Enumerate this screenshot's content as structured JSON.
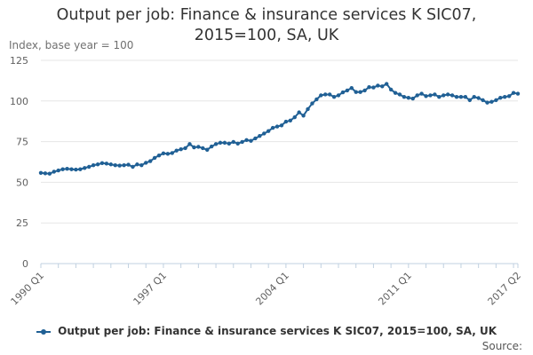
{
  "chart_data": {
    "type": "line",
    "title_lines": [
      "Output per job: Finance & insurance services K SIC07,",
      "2015=100, SA, UK"
    ],
    "ylabel": "Index, base year = 100",
    "xlabel": "",
    "ylim": [
      0,
      125
    ],
    "yticks": [
      0,
      25,
      50,
      75,
      100,
      125
    ],
    "x_range": [
      "1990 Q1",
      "2017 Q2"
    ],
    "xticks": [
      "1990 Q1",
      "1997 Q1",
      "2004 Q1",
      "2011 Q1",
      "2017 Q2"
    ],
    "grid": true,
    "legend_position": "bottom",
    "series": [
      {
        "name": "Output per job: Finance & insurance services K SIC07, 2015=100, SA, UK",
        "color": "#206095",
        "x": [
          "1990 Q1",
          "1990 Q2",
          "1990 Q3",
          "1990 Q4",
          "1991 Q1",
          "1991 Q2",
          "1991 Q3",
          "1991 Q4",
          "1992 Q1",
          "1992 Q2",
          "1992 Q3",
          "1992 Q4",
          "1993 Q1",
          "1993 Q2",
          "1993 Q3",
          "1993 Q4",
          "1994 Q1",
          "1994 Q2",
          "1994 Q3",
          "1994 Q4",
          "1995 Q1",
          "1995 Q2",
          "1995 Q3",
          "1995 Q4",
          "1996 Q1",
          "1996 Q2",
          "1996 Q3",
          "1996 Q4",
          "1997 Q1",
          "1997 Q2",
          "1997 Q3",
          "1997 Q4",
          "1998 Q1",
          "1998 Q2",
          "1998 Q3",
          "1998 Q4",
          "1999 Q1",
          "1999 Q2",
          "1999 Q3",
          "1999 Q4",
          "2000 Q1",
          "2000 Q2",
          "2000 Q3",
          "2000 Q4",
          "2001 Q1",
          "2001 Q2",
          "2001 Q3",
          "2001 Q4",
          "2002 Q1",
          "2002 Q2",
          "2002 Q3",
          "2002 Q4",
          "2003 Q1",
          "2003 Q2",
          "2003 Q3",
          "2003 Q4",
          "2004 Q1",
          "2004 Q2",
          "2004 Q3",
          "2004 Q4",
          "2005 Q1",
          "2005 Q2",
          "2005 Q3",
          "2005 Q4",
          "2006 Q1",
          "2006 Q2",
          "2006 Q3",
          "2006 Q4",
          "2007 Q1",
          "2007 Q2",
          "2007 Q3",
          "2007 Q4",
          "2008 Q1",
          "2008 Q2",
          "2008 Q3",
          "2008 Q4",
          "2009 Q1",
          "2009 Q2",
          "2009 Q3",
          "2009 Q4",
          "2010 Q1",
          "2010 Q2",
          "2010 Q3",
          "2010 Q4",
          "2011 Q1",
          "2011 Q2",
          "2011 Q3",
          "2011 Q4",
          "2012 Q1",
          "2012 Q2",
          "2012 Q3",
          "2012 Q4",
          "2013 Q1",
          "2013 Q2",
          "2013 Q3",
          "2013 Q4",
          "2014 Q1",
          "2014 Q2",
          "2014 Q3",
          "2014 Q4",
          "2015 Q1",
          "2015 Q2",
          "2015 Q3",
          "2015 Q4",
          "2016 Q1",
          "2016 Q2",
          "2016 Q3",
          "2016 Q4",
          "2017 Q1",
          "2017 Q2"
        ],
        "values": [
          55.8,
          55.5,
          55.3,
          56.5,
          57.3,
          58.0,
          58.3,
          58.0,
          57.8,
          58.0,
          58.8,
          59.5,
          60.5,
          61.0,
          61.8,
          61.5,
          61.0,
          60.5,
          60.3,
          60.5,
          60.8,
          59.5,
          61.0,
          60.5,
          62.0,
          63.0,
          65.0,
          66.5,
          67.8,
          67.5,
          68.0,
          69.5,
          70.3,
          71.0,
          73.5,
          71.5,
          71.8,
          71.0,
          70.0,
          72.0,
          73.5,
          74.3,
          74.3,
          73.8,
          74.8,
          73.8,
          74.8,
          76.0,
          75.5,
          77.0,
          78.5,
          80.0,
          81.5,
          83.5,
          84.3,
          85.0,
          87.3,
          88.0,
          90.0,
          93.0,
          91.0,
          95.0,
          98.5,
          101.0,
          103.5,
          104.0,
          104.0,
          102.5,
          103.5,
          105.3,
          106.5,
          108.0,
          105.5,
          105.5,
          106.5,
          108.5,
          108.3,
          109.5,
          109.0,
          110.5,
          107.0,
          105.0,
          104.0,
          102.5,
          102.0,
          101.5,
          103.5,
          104.5,
          103.0,
          103.5,
          104.0,
          102.5,
          103.5,
          104.0,
          103.5,
          102.5,
          102.5,
          102.5,
          100.5,
          102.5,
          101.8,
          100.5,
          99.0,
          99.5,
          100.5,
          102.0,
          102.5,
          103.0,
          105.0,
          104.5
        ]
      }
    ],
    "source_label": "Source:"
  }
}
